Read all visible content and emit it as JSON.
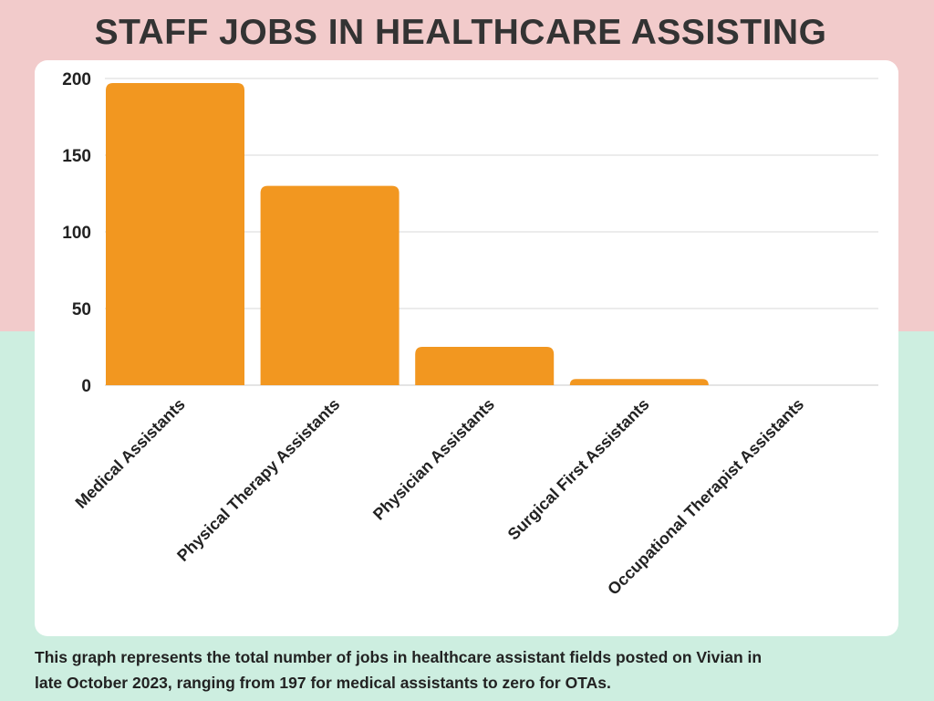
{
  "title": "STAFF JOBS IN HEALTHCARE ASSISTING",
  "caption": {
    "line1": "This graph represents the total number of jobs in healthcare assistant fields posted on Vivian in",
    "line2": "late October 2023, ranging from 197 for medical assistants to zero for OTAs."
  },
  "colors": {
    "bar": "#f29720",
    "top_background": "#f2cbcb",
    "bottom_background": "#cdeee0",
    "grid": "#d9d9d9"
  },
  "chart_data": {
    "type": "bar",
    "title": "STAFF JOBS IN HEALTHCARE ASSISTING",
    "categories": [
      "Medical Assistants",
      "Physical Therapy Assistants",
      "Physician Assistants",
      "Surgical First Assistants",
      "Occupational Therapist Assistants"
    ],
    "values": [
      197,
      130,
      25,
      4,
      0
    ],
    "ylim": [
      0,
      200
    ],
    "yticks": [
      0,
      50,
      100,
      150,
      200
    ],
    "xlabel": "",
    "ylabel": "",
    "grid": true,
    "legend": "none"
  }
}
